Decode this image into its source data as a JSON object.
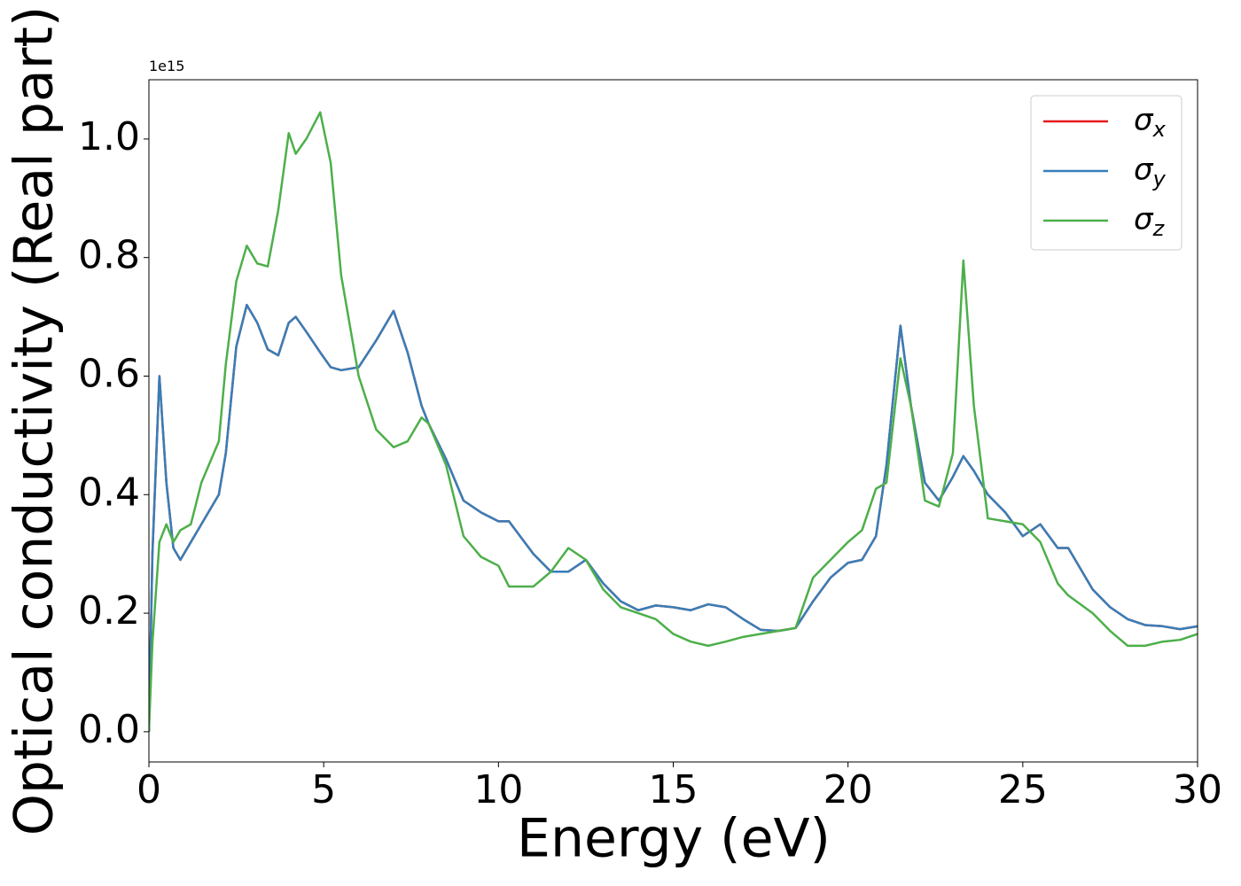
{
  "chart_data": {
    "type": "line",
    "x_label": "Energy (eV)",
    "y_label": "Optical conductivity (Real part)",
    "y_offset_label": "1e15",
    "xlim": [
      0,
      30
    ],
    "xticks": [
      0,
      5,
      10,
      15,
      20,
      25,
      30
    ],
    "ylim": [
      -0.051,
      1.1
    ],
    "yticks": [
      {
        "value": 0,
        "label": "0.0"
      },
      0.2,
      0.4,
      0.6,
      0.8,
      {
        "value": 1,
        "label": "1.0"
      }
    ],
    "legend": "upper right",
    "grid": false,
    "x": [
      0,
      0.1,
      0.3,
      0.5,
      0.7,
      0.9,
      1.2,
      1.5,
      2.0,
      2.2,
      2.5,
      2.8,
      3.1,
      3.4,
      3.7,
      4.0,
      4.2,
      4.5,
      4.9,
      5.2,
      5.5,
      6.0,
      6.5,
      7.0,
      7.4,
      7.8,
      8.0,
      8.5,
      9.0,
      9.5,
      10.0,
      10.3,
      11.0,
      11.5,
      12.0,
      12.5,
      13.0,
      13.5,
      14.0,
      14.5,
      15.0,
      15.5,
      16.0,
      16.5,
      17.0,
      17.5,
      18.0,
      18.5,
      19.0,
      19.5,
      20.0,
      20.4,
      20.8,
      21.1,
      21.5,
      21.8,
      22.2,
      22.6,
      23.0,
      23.3,
      23.6,
      24.0,
      24.5,
      25.0,
      25.5,
      26.0,
      26.3,
      27.0,
      27.5,
      28.0,
      28.5,
      29.0,
      29.5,
      30
    ],
    "series": [
      {
        "name": "σx",
        "color": "#e41a1c",
        "values": [
          0,
          0.3,
          0.6,
          0.42,
          0.31,
          0.29,
          0.32,
          0.35,
          0.4,
          0.47,
          0.65,
          0.72,
          0.69,
          0.645,
          0.635,
          0.69,
          0.7,
          0.675,
          0.64,
          0.615,
          0.61,
          0.615,
          0.66,
          0.71,
          0.64,
          0.55,
          0.52,
          0.46,
          0.39,
          0.37,
          0.355,
          0.355,
          0.3,
          0.27,
          0.27,
          0.29,
          0.25,
          0.22,
          0.205,
          0.213,
          0.21,
          0.205,
          0.215,
          0.21,
          0.19,
          0.172,
          0.17,
          0.175,
          0.22,
          0.26,
          0.285,
          0.29,
          0.33,
          0.45,
          0.685,
          0.55,
          0.42,
          0.39,
          0.43,
          0.465,
          0.44,
          0.4,
          0.37,
          0.33,
          0.35,
          0.31,
          0.31,
          0.24,
          0.21,
          0.19,
          0.18,
          0.178,
          0.173,
          0.178
        ]
      },
      {
        "name": "σy",
        "color": "#377eb8",
        "values": [
          0,
          0.3,
          0.6,
          0.42,
          0.31,
          0.29,
          0.32,
          0.35,
          0.4,
          0.47,
          0.65,
          0.72,
          0.69,
          0.645,
          0.635,
          0.69,
          0.7,
          0.675,
          0.64,
          0.615,
          0.61,
          0.615,
          0.66,
          0.71,
          0.64,
          0.55,
          0.52,
          0.46,
          0.39,
          0.37,
          0.355,
          0.355,
          0.3,
          0.27,
          0.27,
          0.29,
          0.25,
          0.22,
          0.205,
          0.213,
          0.21,
          0.205,
          0.215,
          0.21,
          0.19,
          0.172,
          0.17,
          0.175,
          0.22,
          0.26,
          0.285,
          0.29,
          0.33,
          0.45,
          0.685,
          0.55,
          0.42,
          0.39,
          0.43,
          0.465,
          0.44,
          0.4,
          0.37,
          0.33,
          0.35,
          0.31,
          0.31,
          0.24,
          0.21,
          0.19,
          0.18,
          0.178,
          0.173,
          0.178
        ]
      },
      {
        "name": "σz",
        "color": "#4daf4a",
        "values": [
          0,
          0.15,
          0.32,
          0.35,
          0.32,
          0.34,
          0.35,
          0.42,
          0.49,
          0.62,
          0.76,
          0.82,
          0.79,
          0.785,
          0.88,
          1.01,
          0.975,
          1.0,
          1.045,
          0.96,
          0.77,
          0.6,
          0.51,
          0.48,
          0.49,
          0.53,
          0.52,
          0.45,
          0.33,
          0.295,
          0.28,
          0.245,
          0.245,
          0.27,
          0.31,
          0.29,
          0.24,
          0.21,
          0.2,
          0.19,
          0.165,
          0.152,
          0.145,
          0.152,
          0.16,
          0.165,
          0.17,
          0.175,
          0.26,
          0.29,
          0.32,
          0.34,
          0.41,
          0.42,
          0.63,
          0.55,
          0.39,
          0.38,
          0.47,
          0.795,
          0.55,
          0.36,
          0.355,
          0.35,
          0.32,
          0.25,
          0.23,
          0.2,
          0.17,
          0.145,
          0.145,
          0.152,
          0.155,
          0.165
        ]
      }
    ]
  }
}
